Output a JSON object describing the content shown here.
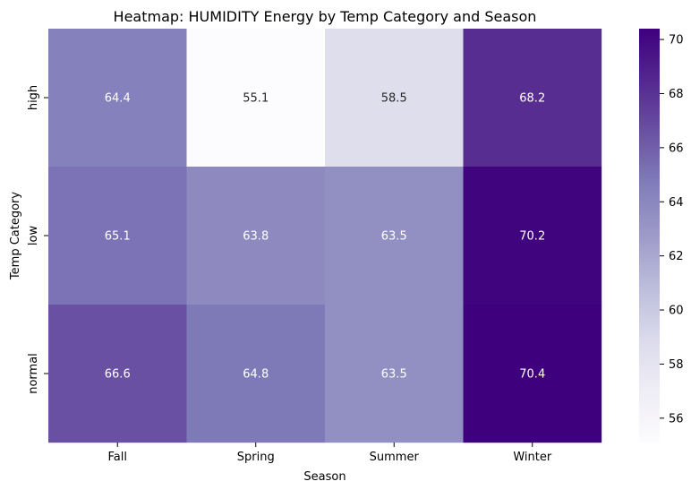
{
  "chart_data": {
    "type": "heatmap",
    "title": "Heatmap: HUMIDITY Energy by Temp Category and Season",
    "xlabel": "Season",
    "ylabel": "Temp Category",
    "x_categories": [
      "Fall",
      "Spring",
      "Summer",
      "Winter"
    ],
    "y_categories": [
      "high",
      "low",
      "normal"
    ],
    "values": [
      [
        64.4,
        55.1,
        58.5,
        68.2
      ],
      [
        65.1,
        63.8,
        63.5,
        70.2
      ],
      [
        66.6,
        64.8,
        63.5,
        70.4
      ]
    ],
    "value_labels": [
      [
        "64.4",
        "55.1",
        "58.5",
        "68.2"
      ],
      [
        "65.1",
        "63.8",
        "63.5",
        "70.2"
      ],
      [
        "66.6",
        "64.8",
        "63.5",
        "70.4"
      ]
    ],
    "colormap": "Purples",
    "color_range": [
      55.1,
      70.4
    ],
    "colorbar_ticks": [
      56,
      58,
      60,
      62,
      64,
      66,
      68,
      70
    ],
    "colorbar_tick_labels": [
      "56",
      "58",
      "60",
      "62",
      "64",
      "66",
      "68",
      "70"
    ],
    "colors": {
      "low": "#fcfbfd",
      "high": "#3f007d",
      "light_text": "#ffffff",
      "dark_text": "#262626"
    }
  }
}
